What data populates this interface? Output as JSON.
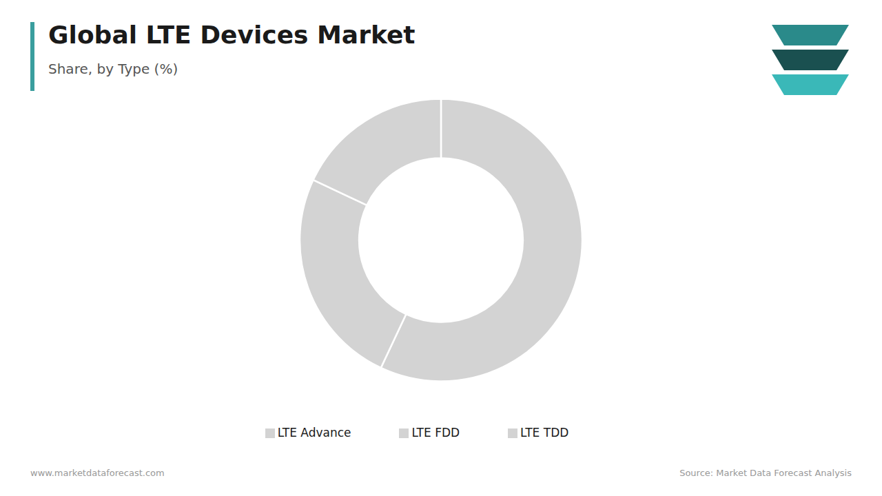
{
  "chart_data": {
    "type": "pie",
    "title": "Global LTE Devices Market",
    "subtitle": "Share, by Type (%)",
    "categories": [
      "LTE FDD",
      "LTE TDD",
      "LTE Advance"
    ],
    "values": [
      57,
      25,
      18
    ],
    "colors": [
      "#d3d3d3",
      "#d3d3d3",
      "#d3d3d3"
    ],
    "legend": "bottom",
    "annotations": [
      "www.marketdataforecast.com",
      "Source: Market Data Forecast Analysis"
    ]
  }
}
